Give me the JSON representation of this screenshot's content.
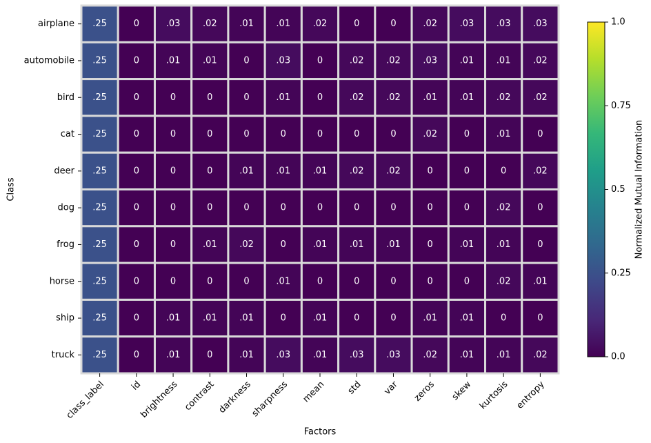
{
  "chart_data": {
    "type": "heatmap",
    "xlabel": "Factors",
    "ylabel": "Class",
    "columns": [
      "class_label",
      "id",
      "brightness",
      "contrast",
      "darkness",
      "sharpness",
      "mean",
      "std",
      "var",
      "zeros",
      "skew",
      "kurtosis",
      "entropy"
    ],
    "rows": [
      "airplane",
      "automobile",
      "bird",
      "cat",
      "deer",
      "dog",
      "frog",
      "horse",
      "ship",
      "truck"
    ],
    "values": [
      [
        0.25,
        0,
        0.03,
        0.02,
        0.01,
        0.01,
        0.02,
        0,
        0,
        0.02,
        0.03,
        0.03,
        0.03
      ],
      [
        0.25,
        0,
        0.01,
        0.01,
        0,
        0.03,
        0,
        0.02,
        0.02,
        0.03,
        0.01,
        0.01,
        0.02
      ],
      [
        0.25,
        0,
        0,
        0,
        0,
        0.01,
        0,
        0.02,
        0.02,
        0.01,
        0.01,
        0.02,
        0.02
      ],
      [
        0.25,
        0,
        0,
        0,
        0,
        0,
        0,
        0,
        0,
        0.02,
        0,
        0.01,
        0
      ],
      [
        0.25,
        0,
        0,
        0,
        0.01,
        0.01,
        0.01,
        0.02,
        0.02,
        0,
        0,
        0,
        0.02
      ],
      [
        0.25,
        0,
        0,
        0,
        0,
        0,
        0,
        0,
        0,
        0,
        0,
        0.02,
        0
      ],
      [
        0.25,
        0,
        0,
        0.01,
        0.02,
        0,
        0.01,
        0.01,
        0.01,
        0,
        0.01,
        0.01,
        0
      ],
      [
        0.25,
        0,
        0,
        0,
        0,
        0.01,
        0,
        0,
        0,
        0,
        0,
        0.02,
        0.01
      ],
      [
        0.25,
        0,
        0.01,
        0.01,
        0.01,
        0,
        0.01,
        0,
        0,
        0.01,
        0.01,
        0,
        0
      ],
      [
        0.25,
        0,
        0.01,
        0,
        0.01,
        0.03,
        0.01,
        0.03,
        0.03,
        0.02,
        0.01,
        0.01,
        0.02
      ]
    ],
    "cell_labels": [
      [
        ".25",
        "0",
        ".03",
        ".02",
        ".01",
        ".01",
        ".02",
        "0",
        "0",
        ".02",
        ".03",
        ".03",
        ".03"
      ],
      [
        ".25",
        "0",
        ".01",
        ".01",
        "0",
        ".03",
        "0",
        ".02",
        ".02",
        ".03",
        ".01",
        ".01",
        ".02"
      ],
      [
        ".25",
        "0",
        "0",
        "0",
        "0",
        ".01",
        "0",
        ".02",
        ".02",
        ".01",
        ".01",
        ".02",
        ".02"
      ],
      [
        ".25",
        "0",
        "0",
        "0",
        "0",
        "0",
        "0",
        "0",
        "0",
        ".02",
        "0",
        ".01",
        "0"
      ],
      [
        ".25",
        "0",
        "0",
        "0",
        ".01",
        ".01",
        ".01",
        ".02",
        ".02",
        "0",
        "0",
        "0",
        ".02"
      ],
      [
        ".25",
        "0",
        "0",
        "0",
        "0",
        "0",
        "0",
        "0",
        "0",
        "0",
        "0",
        ".02",
        "0"
      ],
      [
        ".25",
        "0",
        "0",
        ".01",
        ".02",
        "0",
        ".01",
        ".01",
        ".01",
        "0",
        ".01",
        ".01",
        "0"
      ],
      [
        ".25",
        "0",
        "0",
        "0",
        "0",
        ".01",
        "0",
        "0",
        "0",
        "0",
        "0",
        ".02",
        ".01"
      ],
      [
        ".25",
        "0",
        ".01",
        ".01",
        ".01",
        "0",
        ".01",
        "0",
        "0",
        ".01",
        ".01",
        "0",
        "0"
      ],
      [
        ".25",
        "0",
        ".01",
        "0",
        ".01",
        ".03",
        ".01",
        ".03",
        ".03",
        ".02",
        ".01",
        ".01",
        ".02"
      ]
    ],
    "colorbar": {
      "label": "Normalized Mutual Information",
      "range": [
        0,
        1
      ],
      "ticks": [
        0,
        0.25,
        0.5,
        0.75,
        1
      ],
      "tick_labels": [
        "0.0",
        "0.25",
        "0.5",
        "0.75",
        "1.0"
      ],
      "colormap": "viridis",
      "colormap_stops": [
        "#440154",
        "#482878",
        "#3e4989",
        "#31688e",
        "#26828e",
        "#1f9e89",
        "#35b779",
        "#6ece58",
        "#b5de2b",
        "#fde725"
      ]
    },
    "cell_border_color": "#d9d9d9",
    "cell_text_color": "#ffffff",
    "grid": false
  }
}
